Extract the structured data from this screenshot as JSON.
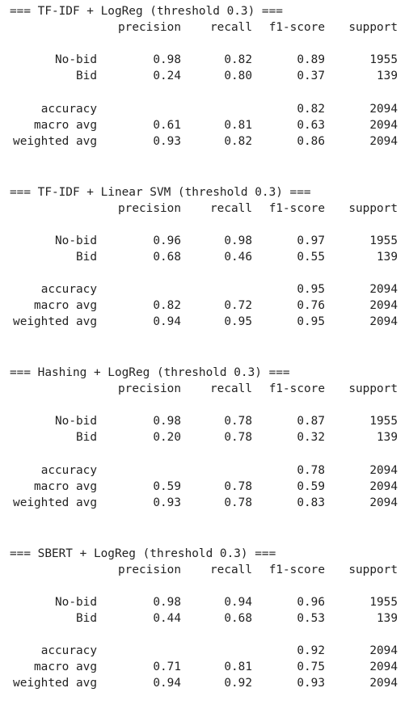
{
  "columns": [
    "precision",
    "recall",
    "f1-score",
    "support"
  ],
  "reports": [
    {
      "title": "=== TF-IDF + LogReg (threshold 0.3) ===",
      "classes": [
        {
          "label": "No-bid",
          "precision": "0.98",
          "recall": "0.82",
          "f1": "0.89",
          "support": "1955"
        },
        {
          "label": "Bid",
          "precision": "0.24",
          "recall": "0.80",
          "f1": "0.37",
          "support": "139"
        }
      ],
      "accuracy": {
        "label": "accuracy",
        "f1": "0.82",
        "support": "2094"
      },
      "averages": [
        {
          "label": "macro avg",
          "precision": "0.61",
          "recall": "0.81",
          "f1": "0.63",
          "support": "2094"
        },
        {
          "label": "weighted avg",
          "precision": "0.93",
          "recall": "0.82",
          "f1": "0.86",
          "support": "2094"
        }
      ]
    },
    {
      "title": "=== TF-IDF + Linear SVM (threshold 0.3) ===",
      "classes": [
        {
          "label": "No-bid",
          "precision": "0.96",
          "recall": "0.98",
          "f1": "0.97",
          "support": "1955"
        },
        {
          "label": "Bid",
          "precision": "0.68",
          "recall": "0.46",
          "f1": "0.55",
          "support": "139"
        }
      ],
      "accuracy": {
        "label": "accuracy",
        "f1": "0.95",
        "support": "2094"
      },
      "averages": [
        {
          "label": "macro avg",
          "precision": "0.82",
          "recall": "0.72",
          "f1": "0.76",
          "support": "2094"
        },
        {
          "label": "weighted avg",
          "precision": "0.94",
          "recall": "0.95",
          "f1": "0.95",
          "support": "2094"
        }
      ]
    },
    {
      "title": "=== Hashing + LogReg (threshold 0.3) ===",
      "classes": [
        {
          "label": "No-bid",
          "precision": "0.98",
          "recall": "0.78",
          "f1": "0.87",
          "support": "1955"
        },
        {
          "label": "Bid",
          "precision": "0.20",
          "recall": "0.78",
          "f1": "0.32",
          "support": "139"
        }
      ],
      "accuracy": {
        "label": "accuracy",
        "f1": "0.78",
        "support": "2094"
      },
      "averages": [
        {
          "label": "macro avg",
          "precision": "0.59",
          "recall": "0.78",
          "f1": "0.59",
          "support": "2094"
        },
        {
          "label": "weighted avg",
          "precision": "0.93",
          "recall": "0.78",
          "f1": "0.83",
          "support": "2094"
        }
      ]
    },
    {
      "title": "=== SBERT + LogReg (threshold 0.3) ===",
      "classes": [
        {
          "label": "No-bid",
          "precision": "0.98",
          "recall": "0.94",
          "f1": "0.96",
          "support": "1955"
        },
        {
          "label": "Bid",
          "precision": "0.44",
          "recall": "0.68",
          "f1": "0.53",
          "support": "139"
        }
      ],
      "accuracy": {
        "label": "accuracy",
        "f1": "0.92",
        "support": "2094"
      },
      "averages": [
        {
          "label": "macro avg",
          "precision": "0.71",
          "recall": "0.81",
          "f1": "0.75",
          "support": "2094"
        },
        {
          "label": "weighted avg",
          "precision": "0.94",
          "recall": "0.92",
          "f1": "0.93",
          "support": "2094"
        }
      ]
    }
  ]
}
